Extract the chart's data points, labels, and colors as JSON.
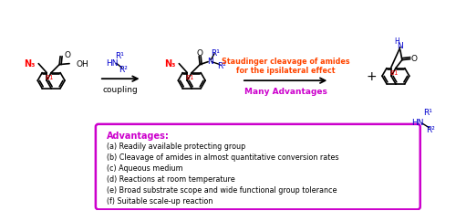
{
  "bg_color": "#ffffff",
  "red": "#ff0000",
  "blue": "#0000cd",
  "magenta": "#cc00cc",
  "orange_red": "#ff4500",
  "advantages_title": "Advantages:",
  "advantages_items": [
    "(a) Readily available protecting group",
    "(b) Cleavage of amides in almost quantitative conversion rates",
    "(c) Aqueous medium",
    "(d) Reactions at room temperature",
    "(e) Broad substrate scope and wide functional group tolerance",
    "(f) Suitable scale-up reaction"
  ],
  "staudinger_line1": "Staudinger cleavage of amides",
  "staudinger_line2": "for the ipsilateral effect",
  "staudinger_line3": "Many Advantages",
  "coupling_label": "coupling",
  "plus_sign": "+"
}
